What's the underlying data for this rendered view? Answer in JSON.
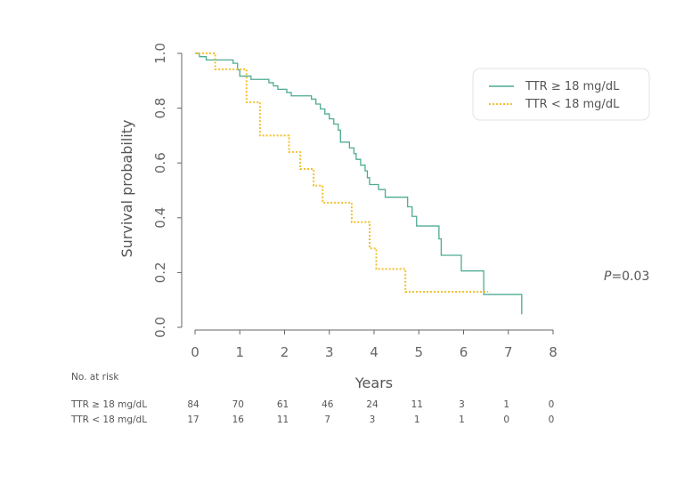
{
  "chart_data": {
    "type": "line",
    "subtype": "kaplan-meier",
    "title": "",
    "xlabel": "Years",
    "ylabel": "Survival probability",
    "xlim": [
      0,
      8
    ],
    "ylim": [
      0.0,
      1.0
    ],
    "x_ticks": [
      "0",
      "1",
      "2",
      "3",
      "4",
      "5",
      "6",
      "7",
      "8"
    ],
    "y_ticks": [
      "0.0",
      "0.2",
      "0.4",
      "0.6",
      "0.8",
      "1.0"
    ],
    "grid": false,
    "legend_position": "top-right",
    "series": [
      {
        "name": "TTR ≥ 18 mg/dL",
        "color": "#4dab93",
        "style": "solid",
        "steps": [
          [
            0,
            1.0
          ],
          [
            0.1,
            0.988
          ],
          [
            0.25,
            0.976
          ],
          [
            0.85,
            0.964
          ],
          [
            0.95,
            0.94
          ],
          [
            1.0,
            0.917
          ],
          [
            1.25,
            0.905
          ],
          [
            1.65,
            0.893
          ],
          [
            1.75,
            0.881
          ],
          [
            1.85,
            0.869
          ],
          [
            2.05,
            0.857
          ],
          [
            2.15,
            0.845
          ],
          [
            2.6,
            0.833
          ],
          [
            2.7,
            0.815
          ],
          [
            2.8,
            0.797
          ],
          [
            2.9,
            0.779
          ],
          [
            3.0,
            0.761
          ],
          [
            3.1,
            0.742
          ],
          [
            3.2,
            0.72
          ],
          [
            3.25,
            0.676
          ],
          [
            3.45,
            0.655
          ],
          [
            3.55,
            0.634
          ],
          [
            3.6,
            0.613
          ],
          [
            3.7,
            0.592
          ],
          [
            3.8,
            0.571
          ],
          [
            3.85,
            0.546
          ],
          [
            3.9,
            0.521
          ],
          [
            4.1,
            0.503
          ],
          [
            4.25,
            0.475
          ],
          [
            4.75,
            0.44
          ],
          [
            4.85,
            0.405
          ],
          [
            4.95,
            0.37
          ],
          [
            5.45,
            0.323
          ],
          [
            5.5,
            0.263
          ],
          [
            5.95,
            0.206
          ],
          [
            6.45,
            0.12
          ],
          [
            7.3,
            0.048
          ]
        ]
      },
      {
        "name": "TTR < 18 mg/dL",
        "color": "#f2c12e",
        "style": "dotted",
        "steps": [
          [
            0,
            1.0
          ],
          [
            0.45,
            0.942
          ],
          [
            1.15,
            0.822
          ],
          [
            1.45,
            0.7
          ],
          [
            2.1,
            0.64
          ],
          [
            2.35,
            0.578
          ],
          [
            2.65,
            0.517
          ],
          [
            2.85,
            0.455
          ],
          [
            3.5,
            0.384
          ],
          [
            3.9,
            0.288
          ],
          [
            4.05,
            0.213
          ],
          [
            4.7,
            0.13
          ],
          [
            6.55,
            0.13
          ]
        ]
      }
    ],
    "annotation": "P=0.03",
    "annotation_italic": "P",
    "annotation_rest": "=0.03",
    "risk_table": {
      "title": "No. at risk",
      "times": [
        0,
        1,
        2,
        3,
        4,
        5,
        6,
        7,
        8
      ],
      "rows": [
        {
          "label": "TTR ≥ 18 mg/dL",
          "counts": [
            "84",
            "70",
            "61",
            "46",
            "24",
            "11",
            "3",
            "1",
            "0"
          ]
        },
        {
          "label": "TTR < 18 mg/dL",
          "counts": [
            "17",
            "16",
            "11",
            "7",
            "3",
            "1",
            "1",
            "0",
            "0"
          ]
        }
      ]
    }
  }
}
